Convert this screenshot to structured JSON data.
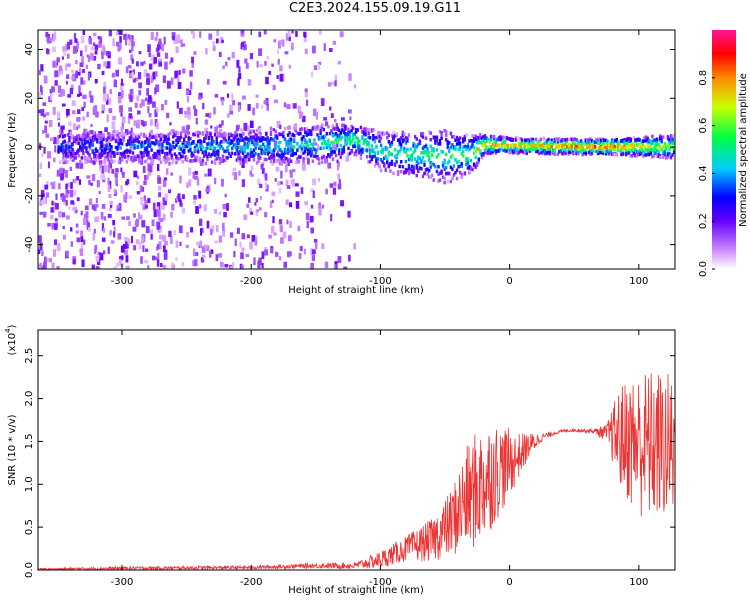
{
  "title": "C2E3.2024.155.09.19.G11",
  "chart_data": [
    {
      "type": "heatmap",
      "xlabel": "Height of straight line (km)",
      "ylabel": "Frequency (Hz)",
      "xlim": [
        -365,
        128
      ],
      "ylim": [
        -50,
        48
      ],
      "xticks": [
        -300,
        -200,
        -100,
        0,
        100
      ],
      "yticks": [
        -40,
        -20,
        0,
        20,
        40
      ],
      "colorbar": {
        "label": "Normalized spectral amplitude",
        "range": [
          0,
          1
        ],
        "ticks": [
          "0.0",
          "0.2",
          "0.4",
          "0.6",
          "0.8"
        ],
        "colors": [
          "#ffffff",
          "#cc88ff",
          "#6600ff",
          "#0000ff",
          "#00ccff",
          "#00ff44",
          "#ccff00",
          "#ff8800",
          "#ff0000",
          "#ff1493"
        ]
      },
      "band": [
        {
          "x": -300,
          "center": 0,
          "width": 8,
          "amp": 0.35
        },
        {
          "x": -200,
          "center": 0,
          "width": 9,
          "amp": 0.45
        },
        {
          "x": -150,
          "center": 1,
          "width": 10,
          "amp": 0.5
        },
        {
          "x": -120,
          "center": 3,
          "width": 8,
          "amp": 0.6
        },
        {
          "x": -100,
          "center": -2,
          "width": 10,
          "amp": 0.5
        },
        {
          "x": -75,
          "center": -3,
          "width": 12,
          "amp": 0.55
        },
        {
          "x": -50,
          "center": -4,
          "width": 14,
          "amp": 0.55
        },
        {
          "x": -30,
          "center": -3,
          "width": 10,
          "amp": 0.6
        },
        {
          "x": -20,
          "center": 1,
          "width": 5,
          "amp": 0.8
        },
        {
          "x": 0,
          "center": 0.5,
          "width": 4,
          "amp": 0.75
        },
        {
          "x": 50,
          "center": 0,
          "width": 4,
          "amp": 0.85
        },
        {
          "x": 80,
          "center": 0,
          "width": 4,
          "amp": 0.9
        },
        {
          "x": 100,
          "center": 0,
          "width": 5,
          "amp": 0.75
        },
        {
          "x": 125,
          "center": 0,
          "width": 6,
          "amp": 0.65
        }
      ]
    },
    {
      "type": "line",
      "xlabel": "Height of straight line (km)",
      "ylabel": "SNR (10 * v/v)",
      "yscale_label": "(x10",
      "yscale_exp": "4",
      "xlim": [
        -365,
        128
      ],
      "ylim": [
        0,
        2.8
      ],
      "xticks": [
        -300,
        -200,
        -100,
        0,
        100
      ],
      "yticks": [
        "0.0",
        "0.5",
        "1.0",
        "1.5",
        "2.0",
        "2.5"
      ],
      "series": [
        {
          "color": "#ee3333",
          "x": [
            -365,
            -300,
            -200,
            -150,
            -120,
            -100,
            -80,
            -60,
            -45,
            -35,
            -25,
            -15,
            -5,
            5,
            15,
            25,
            35,
            45,
            55,
            65,
            75,
            85,
            95,
            105,
            115,
            128
          ],
          "y": [
            0.01,
            0.02,
            0.03,
            0.05,
            0.05,
            0.12,
            0.25,
            0.35,
            0.55,
            0.8,
            0.95,
            1.1,
            1.2,
            1.3,
            1.45,
            1.55,
            1.6,
            1.63,
            1.63,
            1.62,
            1.6,
            1.55,
            1.5,
            1.45,
            1.45,
            1.4
          ],
          "spread": [
            0.01,
            0.02,
            0.02,
            0.03,
            0.04,
            0.1,
            0.15,
            0.25,
            0.4,
            0.6,
            0.7,
            0.65,
            0.5,
            0.3,
            0.15,
            0.05,
            0.02,
            0.02,
            0.02,
            0.03,
            0.1,
            0.6,
            0.8,
            0.9,
            0.9,
            0.9
          ]
        }
      ]
    }
  ]
}
